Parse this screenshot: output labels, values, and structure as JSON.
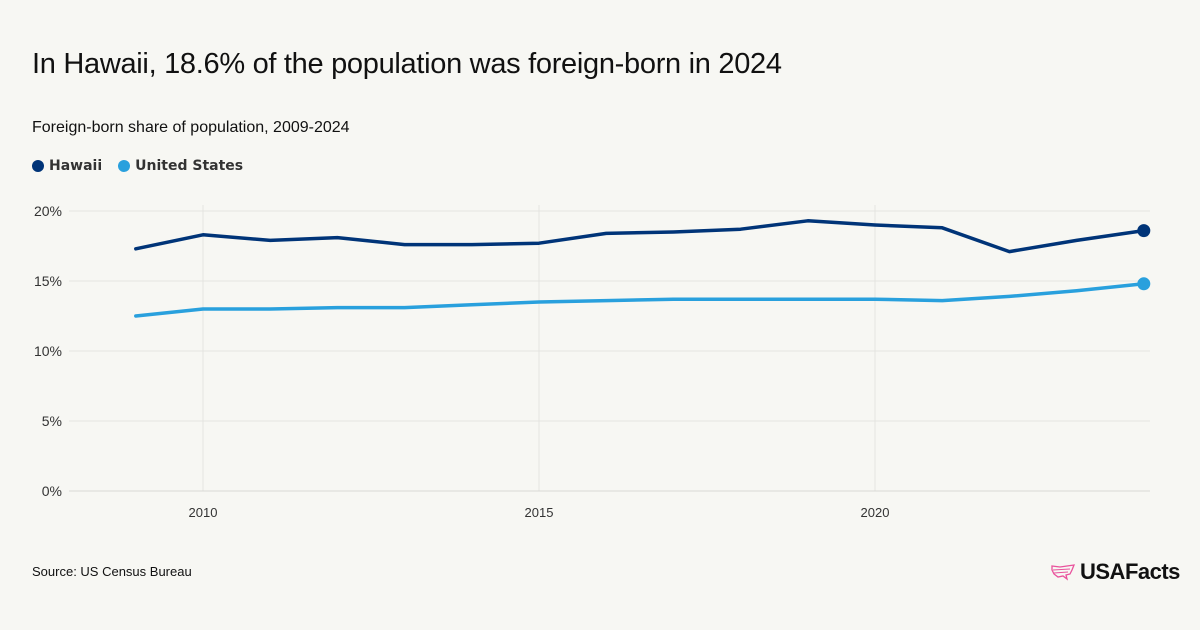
{
  "chart_data": {
    "type": "line",
    "title": "In Hawaii, 18.6% of the population was foreign-born in 2024",
    "subtitle": "Foreign-born share of population, 2009-2024",
    "x": [
      2009,
      2010,
      2011,
      2012,
      2013,
      2014,
      2015,
      2016,
      2017,
      2018,
      2019,
      2020,
      2021,
      2022,
      2023,
      2024
    ],
    "series": [
      {
        "name": "Hawaii",
        "color": "#003478",
        "values": [
          17.3,
          18.3,
          17.9,
          18.1,
          17.6,
          17.6,
          17.7,
          18.4,
          18.5,
          18.7,
          19.3,
          19.0,
          18.8,
          17.1,
          17.9,
          18.6
        ]
      },
      {
        "name": "United States",
        "color": "#29a0dd",
        "values": [
          12.5,
          13.0,
          13.0,
          13.1,
          13.1,
          13.3,
          13.5,
          13.6,
          13.7,
          13.7,
          13.7,
          13.7,
          13.6,
          13.9,
          14.3,
          14.8
        ]
      }
    ],
    "xlim": [
      2008,
      2024.1
    ],
    "ylim": [
      0,
      20
    ],
    "xticks": [
      2010,
      2015,
      2020
    ],
    "xtick_labels": [
      "2010",
      "2015",
      "2020"
    ],
    "yticks": [
      0,
      5,
      10,
      15,
      20
    ],
    "ytick_labels": [
      "0%",
      "5%",
      "10%",
      "15%",
      "20%"
    ],
    "grid": true,
    "legend_placement": "top-left",
    "end_markers": true
  },
  "source": "Source: US Census Bureau",
  "brand": "USAFacts",
  "brand_color": "#e9529c"
}
